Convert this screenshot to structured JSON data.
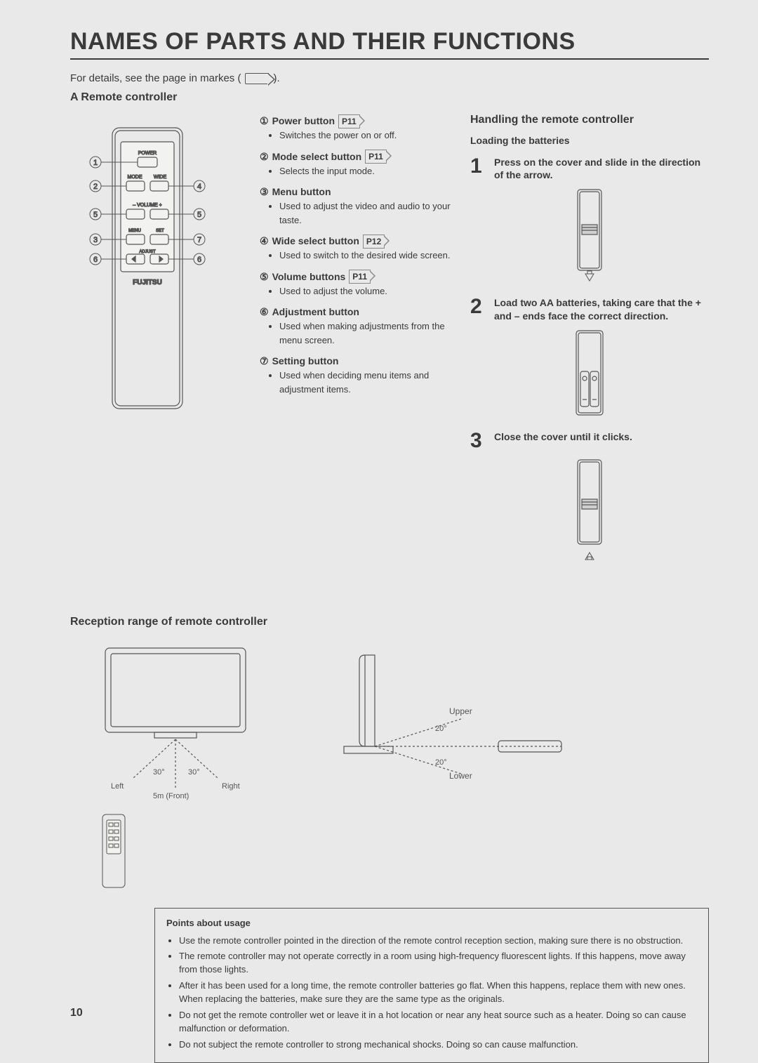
{
  "title": "NAMES OF PARTS AND THEIR FUNCTIONS",
  "intro_prefix": "For details, see the page in markes (",
  "intro_suffix": ").",
  "section_a": "A Remote controller",
  "remote_brand": "FUJITSU",
  "remote_labels": {
    "power": "POWER",
    "mode": "MODE",
    "wide": "WIDE",
    "volume": "VOLUME",
    "menu": "MENU",
    "set": "SET",
    "adjust": "ADJUST"
  },
  "callouts": [
    "①",
    "②",
    "③",
    "④",
    "⑤",
    "⑤",
    "⑥",
    "⑥",
    "⑦"
  ],
  "descriptions": [
    {
      "num": "①",
      "name": "Power button",
      "page": "P11",
      "bullets": [
        "Switches the power on or off."
      ]
    },
    {
      "num": "②",
      "name": "Mode select button",
      "page": "P11",
      "bullets": [
        "Selects the input mode."
      ]
    },
    {
      "num": "③",
      "name": "Menu button",
      "page": "",
      "bullets": [
        "Used to adjust the video and audio to your taste."
      ]
    },
    {
      "num": "④",
      "name": "Wide select button",
      "page": "P12",
      "bullets": [
        "Used to switch to the desired wide screen."
      ]
    },
    {
      "num": "⑤",
      "name": "Volume buttons",
      "page": "P11",
      "bullets": [
        "Used to adjust the volume."
      ]
    },
    {
      "num": "⑥",
      "name": "Adjustment button",
      "page": "",
      "bullets": [
        "Used when making adjustments from the menu screen."
      ]
    },
    {
      "num": "⑦",
      "name": "Setting button",
      "page": "",
      "bullets": [
        "Used when deciding menu items and adjustment items."
      ]
    }
  ],
  "handling": {
    "title": "Handling the remote controller",
    "sub": "Loading the batteries",
    "steps": [
      {
        "n": "1",
        "text": "Press on the cover and slide in the direction of the arrow."
      },
      {
        "n": "2",
        "text": "Load two AA batteries, taking care that the + and – ends face the correct direction."
      },
      {
        "n": "3",
        "text": "Close the cover until it clicks."
      }
    ]
  },
  "reception": {
    "title": "Reception range of remote controller",
    "front": {
      "left_angle": "30°",
      "right_angle": "30°",
      "left": "Left",
      "right": "Right",
      "distance": "5m (Front)"
    },
    "side": {
      "upper": "Upper",
      "upper_angle": "20°",
      "lower": "Lower",
      "lower_angle": "20°"
    }
  },
  "usage": {
    "title": "Points about usage",
    "items": [
      "Use the remote controller pointed in the direction of the remote control reception section, making sure there is no obstruction.",
      "The remote controller may not operate correctly in a room using high-frequency fluorescent lights.  If this happens, move away from those lights.",
      "After it has been used for a long time,  the remote controller batteries go flat.  When this happens, replace them with new ones. When replacing the batteries, make sure they are the same type as the originals.",
      "Do not get the remote controller wet or leave it in a hot location or  near any heat source such as a heater. Doing so can cause malfunction or deformation.",
      "Do not subject the remote controller to strong mechanical shocks. Doing so can cause malfunction."
    ]
  },
  "page_number": "10",
  "colors": {
    "bg": "#e8e9e8",
    "stroke": "#555555",
    "text": "#3a3a3a"
  }
}
